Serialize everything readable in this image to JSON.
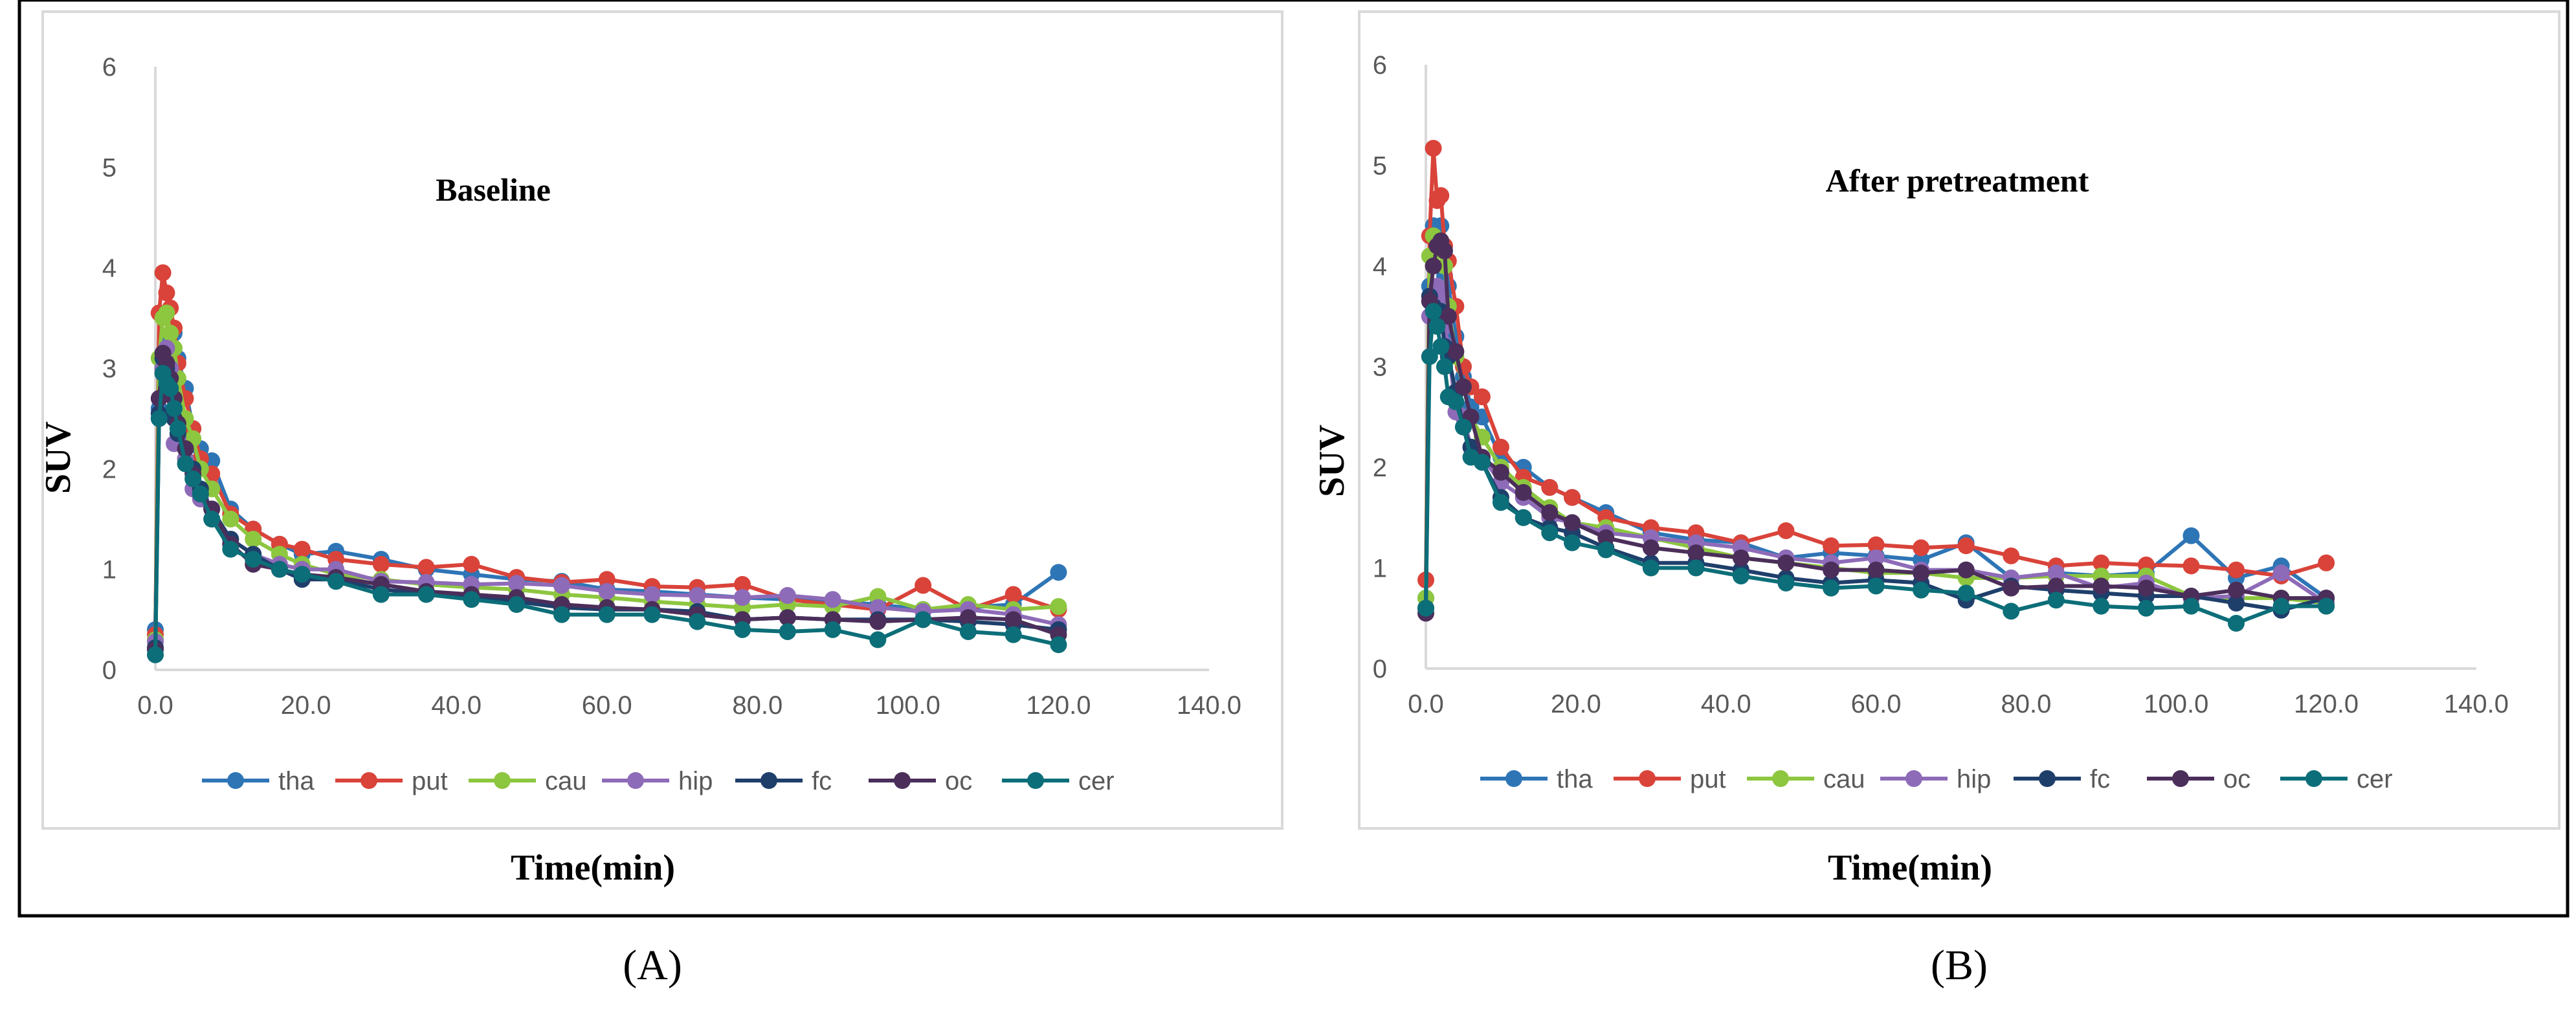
{
  "figure": {
    "panel_labels": [
      "(A)",
      "(B)"
    ]
  },
  "series_colors": {
    "tha": "#2E75B6",
    "put": "#D9433A",
    "cau": "#8DC63F",
    "hip": "#8E6BB8",
    "fc": "#1F3F6B",
    "oc": "#4B2E5A",
    "cer": "#0C6E78"
  },
  "chart_data": [
    {
      "type": "line",
      "title": "Baseline",
      "xlabel": "Time(min)",
      "ylabel": "SUV",
      "xlim": [
        0,
        140
      ],
      "ylim": [
        0,
        6
      ],
      "xticks": [
        "0.0",
        "20.0",
        "40.0",
        "60.0",
        "80.0",
        "100.0",
        "120.0",
        "140.0"
      ],
      "yticks": [
        "0",
        "1",
        "2",
        "3",
        "4",
        "5",
        "6"
      ],
      "x": [
        0,
        0.5,
        1,
        1.5,
        2,
        2.5,
        3,
        4,
        5,
        6,
        7.5,
        10,
        13,
        16.5,
        19.5,
        24,
        30,
        36,
        42,
        48,
        54,
        60,
        66,
        72,
        78,
        84,
        90,
        96,
        102,
        108,
        114,
        120
      ],
      "series": [
        {
          "name": "tha",
          "values": [
            0.4,
            2.6,
            3.0,
            3.2,
            3.3,
            3.35,
            3.1,
            2.8,
            2.4,
            2.2,
            2.08,
            1.6,
            1.4,
            1.25,
            1.15,
            1.18,
            1.1,
            1.0,
            0.95,
            0.9,
            0.88,
            0.8,
            0.78,
            0.75,
            0.72,
            0.7,
            0.68,
            0.65,
            0.6,
            0.62,
            0.65,
            0.97
          ]
        },
        {
          "name": "put",
          "values": [
            0.35,
            3.55,
            3.95,
            3.75,
            3.6,
            3.4,
            3.05,
            2.7,
            2.4,
            2.1,
            1.95,
            1.55,
            1.4,
            1.25,
            1.2,
            1.1,
            1.05,
            1.02,
            1.05,
            0.92,
            0.87,
            0.9,
            0.83,
            0.82,
            0.85,
            0.7,
            0.65,
            0.6,
            0.84,
            0.6,
            0.75,
            0.6
          ]
        },
        {
          "name": "cau",
          "values": [
            0.3,
            3.1,
            3.5,
            3.55,
            3.35,
            3.2,
            2.9,
            2.5,
            2.3,
            2.0,
            1.8,
            1.5,
            1.3,
            1.15,
            1.05,
            0.95,
            0.9,
            0.85,
            0.82,
            0.8,
            0.75,
            0.72,
            0.68,
            0.65,
            0.62,
            0.65,
            0.63,
            0.73,
            0.6,
            0.65,
            0.6,
            0.63
          ]
        },
        {
          "name": "hip",
          "values": [
            0.28,
            2.5,
            3.0,
            3.2,
            3.0,
            2.25,
            2.3,
            2.1,
            1.8,
            1.7,
            1.5,
            1.3,
            1.15,
            1.05,
            1.0,
            1.0,
            0.88,
            0.87,
            0.85,
            0.86,
            0.84,
            0.78,
            0.75,
            0.74,
            0.72,
            0.74,
            0.7,
            0.62,
            0.58,
            0.6,
            0.55,
            0.45
          ]
        },
        {
          "name": "fc",
          "values": [
            0.22,
            2.55,
            3.1,
            3.0,
            2.8,
            2.5,
            2.35,
            2.2,
            2.0,
            1.8,
            1.6,
            1.3,
            1.15,
            1.0,
            0.9,
            0.9,
            0.8,
            0.76,
            0.72,
            0.68,
            0.62,
            0.6,
            0.6,
            0.58,
            0.5,
            0.52,
            0.5,
            0.5,
            0.5,
            0.48,
            0.45,
            0.4
          ]
        },
        {
          "name": "oc",
          "values": [
            0.2,
            2.7,
            3.15,
            3.05,
            2.9,
            2.7,
            2.45,
            2.2,
            1.95,
            1.75,
            1.6,
            1.25,
            1.05,
            1.0,
            0.95,
            0.92,
            0.85,
            0.78,
            0.75,
            0.72,
            0.65,
            0.62,
            0.6,
            0.55,
            0.5,
            0.52,
            0.5,
            0.48,
            0.5,
            0.52,
            0.5,
            0.35
          ]
        },
        {
          "name": "cer",
          "values": [
            0.15,
            2.5,
            2.95,
            2.85,
            2.8,
            2.6,
            2.4,
            2.05,
            1.9,
            1.75,
            1.5,
            1.2,
            1.1,
            1.0,
            0.95,
            0.88,
            0.75,
            0.75,
            0.7,
            0.65,
            0.55,
            0.55,
            0.55,
            0.48,
            0.4,
            0.38,
            0.4,
            0.3,
            0.5,
            0.38,
            0.35,
            0.25
          ]
        }
      ]
    },
    {
      "type": "line",
      "title": "After pretreatment",
      "xlabel": "Time(min)",
      "ylabel": "SUV",
      "xlim": [
        0,
        140
      ],
      "ylim": [
        0,
        6
      ],
      "xticks": [
        "0.0",
        "20.0",
        "40.0",
        "60.0",
        "80.0",
        "100.0",
        "120.0",
        "140.0"
      ],
      "yticks": [
        "0",
        "1",
        "2",
        "3",
        "4",
        "5",
        "6"
      ],
      "x": [
        0,
        0.5,
        1,
        1.5,
        2,
        2.5,
        3,
        4,
        5,
        6,
        7.5,
        10,
        13,
        16.5,
        19.5,
        24,
        30,
        36,
        42,
        48,
        54,
        60,
        66,
        72,
        78,
        84,
        90,
        96,
        102,
        108,
        114,
        120
      ],
      "series": [
        {
          "name": "tha",
          "values": [
            0.7,
            3.8,
            4.4,
            4.3,
            4.4,
            3.9,
            3.8,
            3.3,
            2.9,
            2.6,
            2.5,
            2.1,
            2.0,
            1.8,
            1.7,
            1.55,
            1.35,
            1.28,
            1.25,
            1.1,
            1.15,
            1.12,
            1.08,
            1.25,
            0.9,
            0.95,
            0.92,
            0.95,
            1.32,
            0.9,
            1.02,
            0.7
          ]
        },
        {
          "name": "put",
          "values": [
            0.88,
            4.3,
            5.17,
            4.65,
            4.7,
            4.2,
            4.05,
            3.6,
            3.0,
            2.8,
            2.7,
            2.2,
            1.9,
            1.8,
            1.7,
            1.5,
            1.4,
            1.35,
            1.25,
            1.37,
            1.22,
            1.23,
            1.2,
            1.22,
            1.12,
            1.02,
            1.05,
            1.03,
            1.02,
            0.98,
            0.92,
            1.05
          ]
        },
        {
          "name": "cau",
          "values": [
            0.7,
            4.1,
            4.3,
            4.15,
            4.2,
            4.0,
            3.6,
            3.1,
            2.8,
            2.5,
            2.3,
            2.0,
            1.8,
            1.6,
            1.45,
            1.4,
            1.3,
            1.2,
            1.1,
            1.05,
            1.0,
            0.95,
            0.95,
            0.9,
            0.9,
            0.92,
            0.92,
            0.92,
            0.72,
            0.7,
            0.7,
            0.65
          ]
        },
        {
          "name": "hip",
          "values": [
            0.6,
            3.5,
            3.7,
            3.8,
            3.7,
            3.4,
            3.2,
            2.55,
            2.5,
            2.2,
            2.1,
            1.85,
            1.7,
            1.5,
            1.45,
            1.35,
            1.3,
            1.25,
            1.2,
            1.1,
            1.05,
            1.1,
            0.98,
            0.98,
            0.9,
            0.95,
            0.8,
            0.85,
            0.7,
            0.72,
            0.95,
            0.65
          ]
        },
        {
          "name": "fc",
          "values": [
            0.6,
            3.7,
            3.6,
            3.5,
            3.55,
            3.2,
            3.1,
            2.75,
            2.4,
            2.2,
            2.05,
            1.7,
            1.5,
            1.4,
            1.35,
            1.2,
            1.05,
            1.05,
            0.98,
            0.9,
            0.85,
            0.88,
            0.85,
            0.68,
            0.82,
            0.78,
            0.75,
            0.72,
            0.72,
            0.65,
            0.58,
            0.7
          ]
        },
        {
          "name": "oc",
          "values": [
            0.55,
            3.65,
            4.0,
            4.2,
            4.25,
            4.15,
            3.5,
            3.15,
            2.8,
            2.5,
            2.1,
            1.95,
            1.75,
            1.55,
            1.45,
            1.3,
            1.2,
            1.15,
            1.1,
            1.05,
            0.98,
            0.98,
            0.95,
            0.98,
            0.8,
            0.82,
            0.82,
            0.8,
            0.72,
            0.78,
            0.7,
            0.7
          ]
        },
        {
          "name": "cer",
          "values": [
            0.6,
            3.1,
            3.55,
            3.4,
            3.2,
            3.0,
            2.7,
            2.65,
            2.4,
            2.1,
            2.05,
            1.65,
            1.5,
            1.35,
            1.25,
            1.18,
            1.0,
            1.0,
            0.92,
            0.85,
            0.8,
            0.82,
            0.78,
            0.75,
            0.57,
            0.68,
            0.62,
            0.6,
            0.62,
            0.45,
            0.62,
            0.62
          ]
        }
      ]
    }
  ]
}
